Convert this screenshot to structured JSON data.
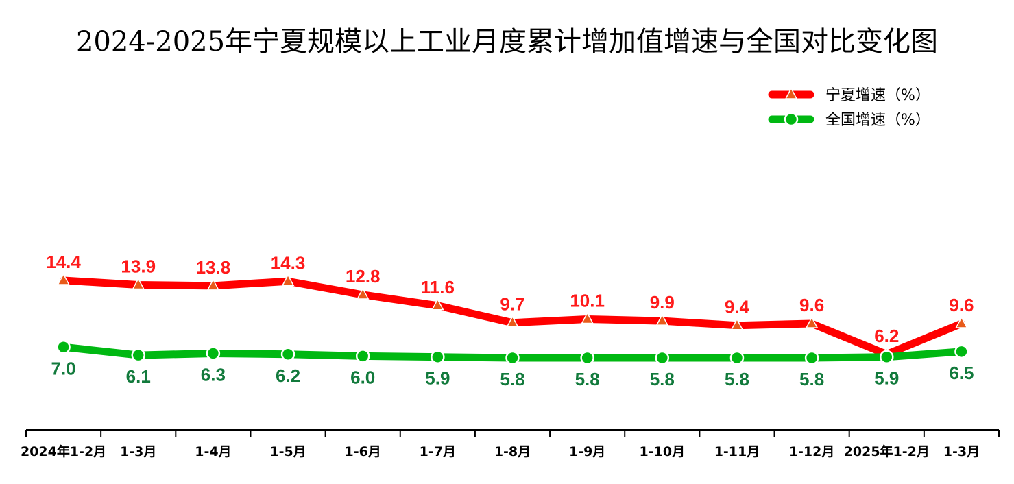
{
  "chart_data": {
    "type": "line",
    "title": "2024-2025年宁夏规模以上工业月度累计增加值增速与全国对比变化图",
    "categories": [
      "2024年1-2月",
      "1-3月",
      "1-4月",
      "1-5月",
      "1-6月",
      "1-7月",
      "1-8月",
      "1-9月",
      "1-10月",
      "1-11月",
      "1-12月",
      "2025年1-2月",
      "1-3月"
    ],
    "series": [
      {
        "name": "宁夏增速（%）",
        "color": "#ff0000",
        "marker": "triangle",
        "marker_color": "#e85a1a",
        "label_color": "#ff1a1a",
        "values": [
          14.4,
          13.9,
          13.8,
          14.3,
          12.8,
          11.6,
          9.7,
          10.1,
          9.9,
          9.4,
          9.6,
          6.2,
          9.6
        ]
      },
      {
        "name": "全国增速（%）",
        "color": "#00b812",
        "marker": "circle",
        "marker_color": "#00b812",
        "label_color": "#127a3c",
        "values": [
          7.0,
          6.1,
          6.3,
          6.2,
          6.0,
          5.9,
          5.8,
          5.8,
          5.8,
          5.8,
          5.8,
          5.9,
          6.5
        ]
      }
    ],
    "legend": "top-right",
    "grid": false,
    "y_axis_visible": false
  }
}
